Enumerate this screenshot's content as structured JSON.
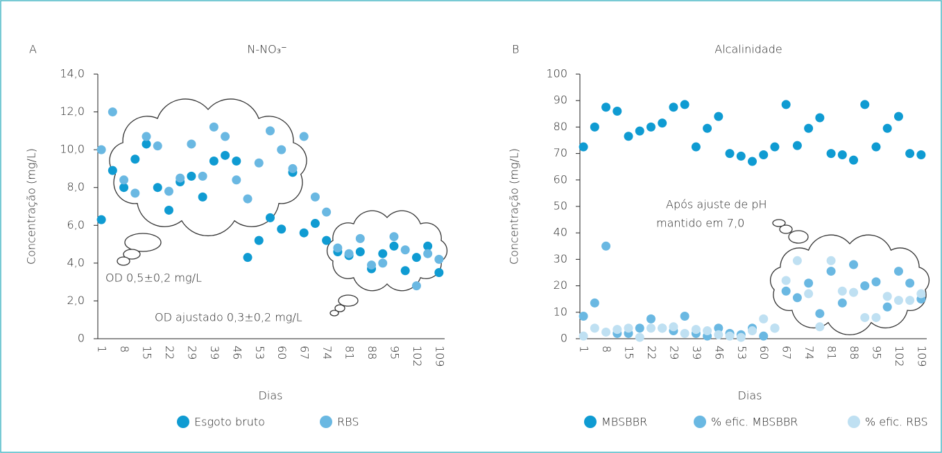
{
  "chart_data": [
    {
      "type": "scatter",
      "panel_label": "A",
      "title": "N-NO₃⁻",
      "y_label": "Concentração (mg/L)",
      "x_label": "Dias",
      "categories": [
        "1",
        null,
        "8",
        null,
        "15",
        null,
        "22",
        null,
        "29",
        null,
        "39",
        null,
        "46",
        null,
        "53",
        null,
        "60",
        null,
        "67",
        null,
        "74",
        null,
        "81",
        null,
        "88",
        null,
        "95",
        null,
        "102",
        null,
        "109"
      ],
      "ylim": [
        0,
        14
      ],
      "yticks": [
        0,
        {
          "value": 2,
          "label": "2,0"
        },
        {
          "value": 4,
          "label": "4,0"
        },
        {
          "value": 6,
          "label": "6,0"
        },
        {
          "value": 8,
          "label": "8,0"
        },
        {
          "value": 10,
          "label": "10,0"
        },
        {
          "value": 12,
          "label": "12,0"
        },
        {
          "value": 14,
          "label": "14,0"
        }
      ],
      "annotations": [
        "OD 0,5±0,2 mg/L",
        "OD ajustado 0,3±0,2 mg/L"
      ],
      "series": [
        {
          "name": "Esgoto bruto",
          "color": "#0f9bd2",
          "values": [
            6.3,
            8.9,
            8.0,
            9.5,
            10.3,
            8.0,
            6.8,
            8.3,
            8.6,
            7.5,
            9.4,
            9.7,
            9.4,
            4.3,
            5.2,
            6.4,
            5.8,
            8.8,
            5.6,
            6.1,
            5.2,
            4.6,
            4.4,
            4.6,
            3.7,
            4.5,
            4.9,
            3.6,
            4.3,
            4.9,
            3.5
          ]
        },
        {
          "name": "RBS",
          "color": "#6ab8e2",
          "values": [
            10.0,
            12.0,
            8.4,
            7.7,
            10.7,
            10.2,
            7.8,
            8.5,
            10.3,
            8.6,
            11.2,
            10.7,
            8.4,
            7.4,
            9.3,
            11.0,
            10.0,
            9.0,
            10.7,
            7.5,
            6.7,
            4.8,
            4.5,
            5.3,
            3.9,
            4.0,
            5.4,
            4.7,
            2.8,
            4.5,
            4.2
          ]
        }
      ]
    },
    {
      "type": "scatter",
      "panel_label": "B",
      "title": "Alcalinidade",
      "y_label": "Concentração (mg/L)",
      "x_label": "Dias",
      "categories": [
        "1",
        null,
        "8",
        null,
        "15",
        null,
        "22",
        null,
        "29",
        null,
        "39",
        null,
        "46",
        null,
        "53",
        null,
        "60",
        null,
        "67",
        null,
        "74",
        null,
        "81",
        null,
        "88",
        null,
        "95",
        null,
        "102",
        null,
        "109"
      ],
      "ylim": [
        0,
        100
      ],
      "yticks": [
        0,
        10,
        20,
        30,
        40,
        50,
        60,
        70,
        80,
        90,
        100
      ],
      "annotations": [
        "Após ajuste de pH",
        "mantido em 7,0"
      ],
      "series": [
        {
          "name": "MBSBBR",
          "color": "#0f9bd2",
          "values": [
            72.5,
            80,
            87.5,
            86,
            76.5,
            78.5,
            80,
            81.5,
            87.5,
            88.5,
            72.5,
            79.5,
            84,
            70,
            69,
            67,
            69.5,
            72.5,
            88.5,
            73,
            79.5,
            83.5,
            70,
            69.5,
            67.5,
            88.5,
            72.5,
            79.5,
            84,
            70,
            69.5
          ]
        },
        {
          "name": "% efic. MBSBBR",
          "color": "#6ab8e2",
          "values": [
            8.5,
            13.5,
            35,
            2,
            2,
            4,
            7.5,
            4,
            3,
            8.5,
            2,
            1,
            4,
            2,
            1.5,
            4,
            1,
            4,
            18,
            15.5,
            21,
            9.5,
            25.5,
            13.5,
            28,
            20,
            21.5,
            12,
            25.5,
            21,
            15
          ]
        },
        {
          "name": "% efic. RBS",
          "color": "#bfe0f2",
          "values": [
            1,
            4,
            2.5,
            3.5,
            4,
            0.5,
            4,
            4,
            4.5,
            2,
            3.5,
            3,
            1.5,
            1,
            0.5,
            3,
            7.5,
            4,
            22,
            29.5,
            17,
            4.5,
            29.5,
            18,
            17.5,
            8,
            8,
            16,
            14.5,
            14.5,
            17
          ]
        }
      ]
    }
  ]
}
